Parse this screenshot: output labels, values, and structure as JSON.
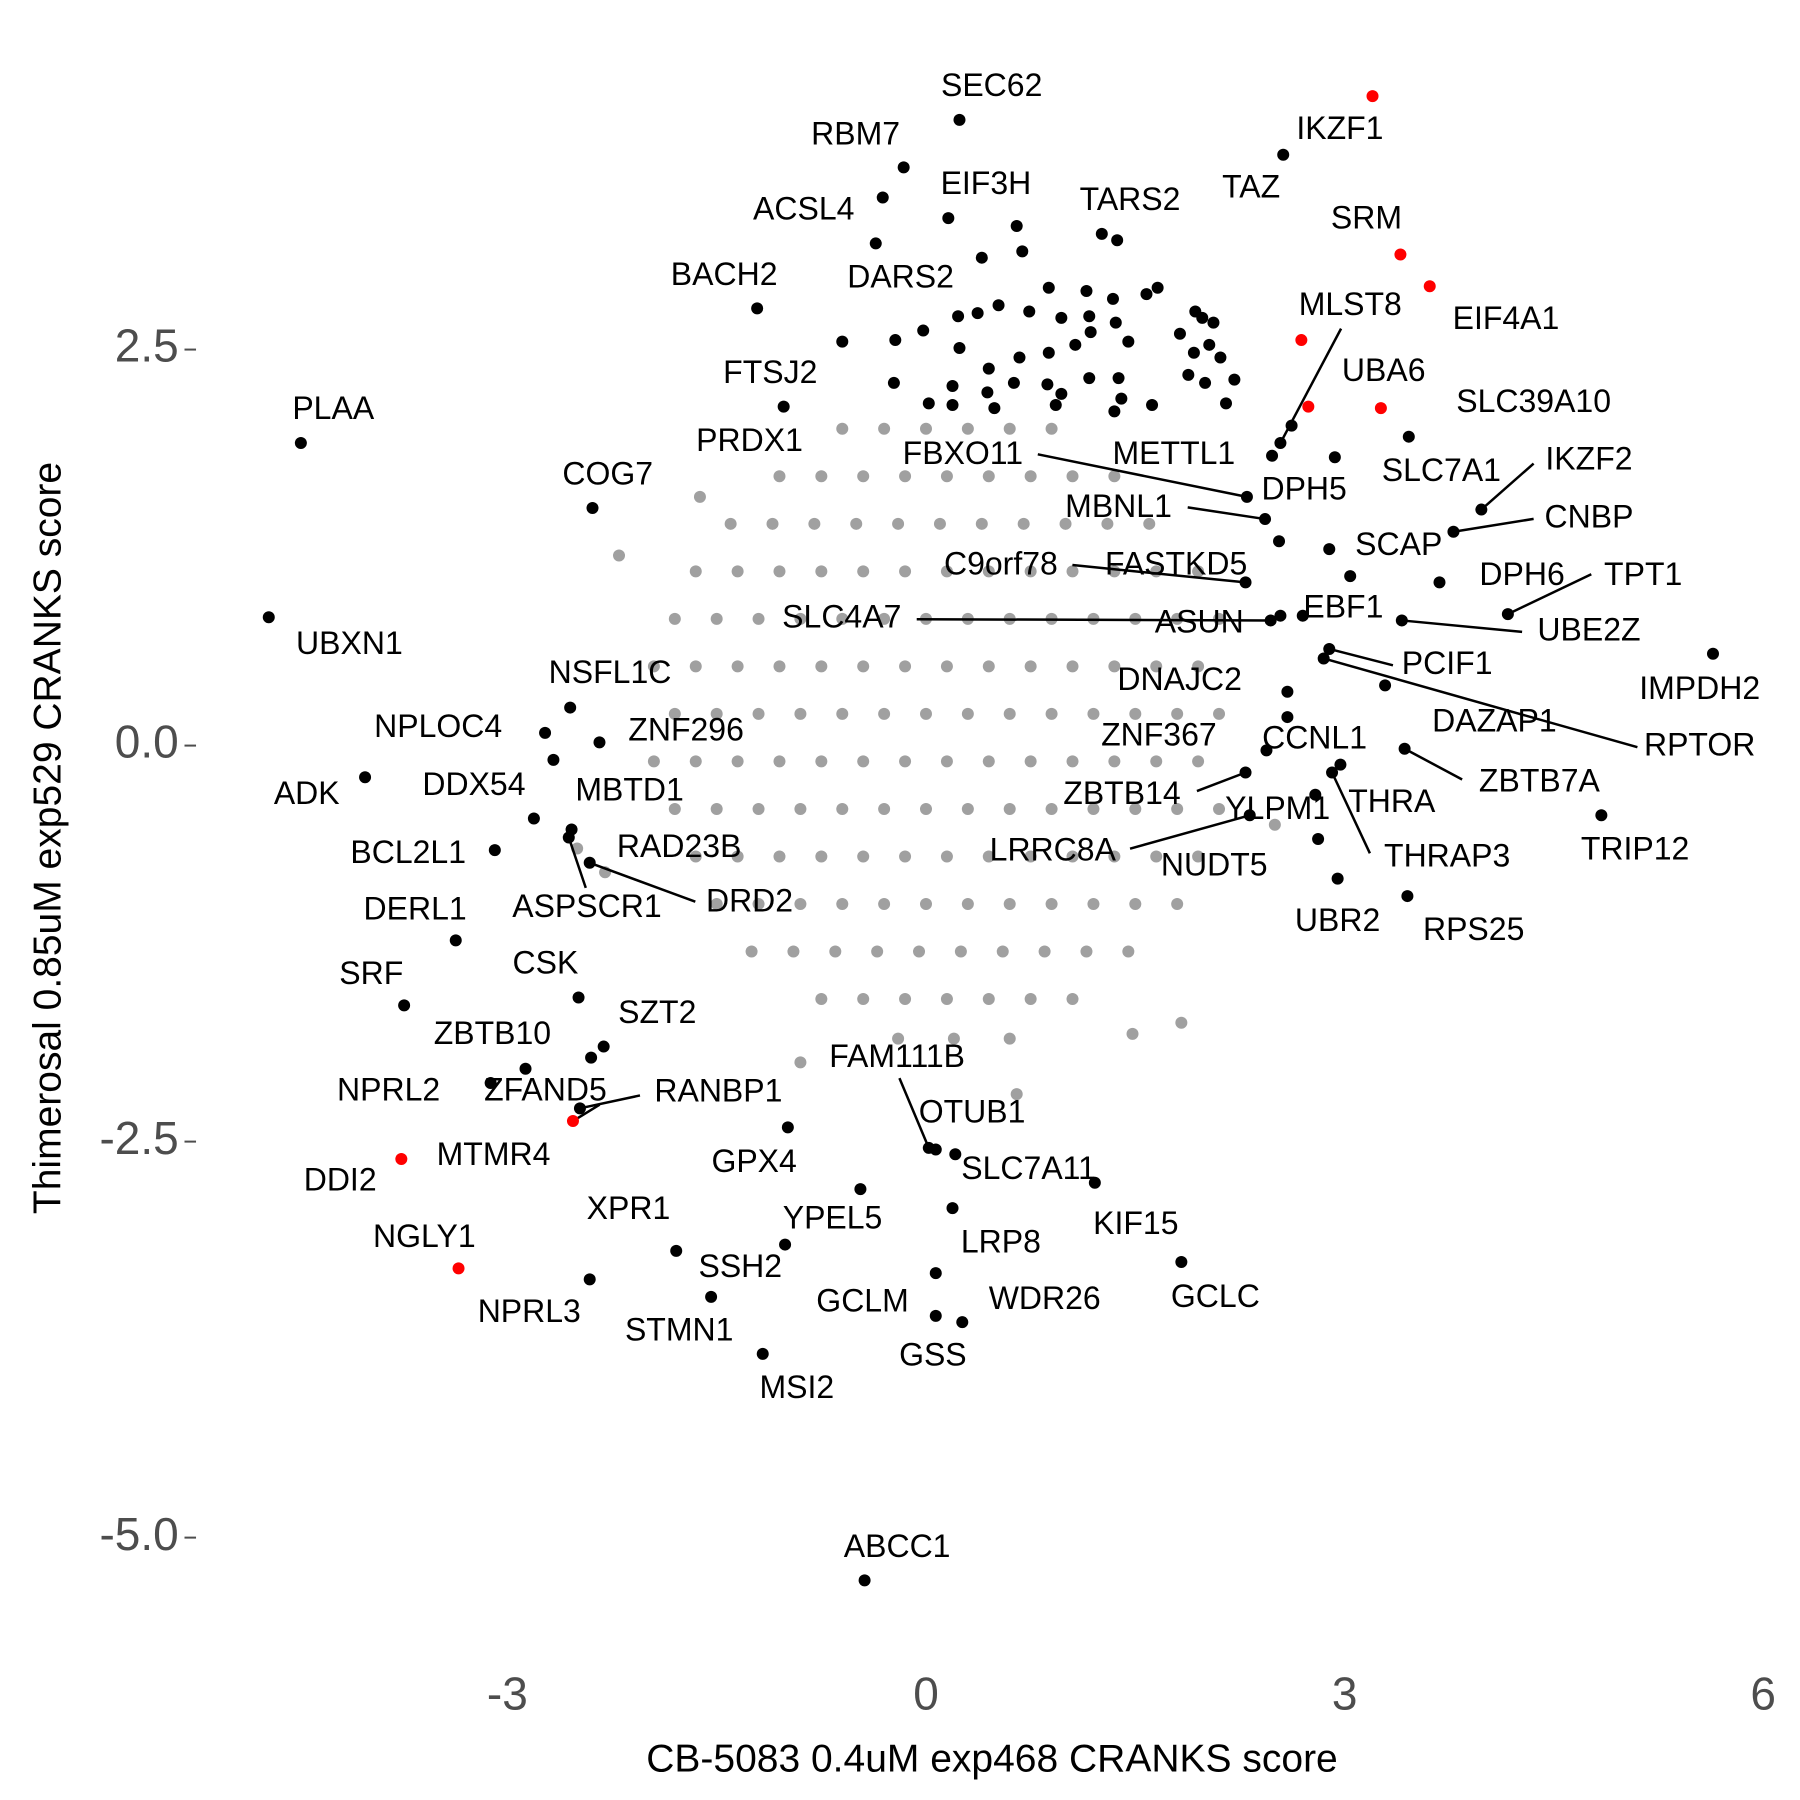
{
  "chart_data": {
    "type": "scatter",
    "xlabel": "CB-5083 0.4uM exp468 CRANKS score",
    "ylabel": "Thimerosal 0.85uM exp529 CRANKS score",
    "xlim": [
      -5.19,
      6.09
    ],
    "ylim": [
      -5.63,
      4.27
    ],
    "xticks": [
      -3,
      0,
      3,
      6
    ],
    "yticks": [
      {
        "value": -5,
        "label": "-5.0"
      },
      {
        "value": -2.5,
        "label": "-2.5"
      },
      {
        "value": 0,
        "label": "0.0"
      },
      {
        "value": 2.5,
        "label": "2.5"
      }
    ],
    "grid": false,
    "series": [
      {
        "color": "#a0a0a0",
        "x": [
          -0.6,
          -0.3,
          0,
          0.3,
          0.6,
          0.9,
          -1.05,
          -0.75,
          -0.45,
          -0.15,
          0.15,
          0.45,
          0.75,
          1.05,
          1.35,
          -1.4,
          -1.1,
          -0.8,
          -0.5,
          -0.2,
          0.1,
          0.4,
          0.7,
          1.0,
          1.3,
          1.6,
          -1.65,
          -1.35,
          -1.05,
          -0.75,
          -0.45,
          -0.15,
          0.15,
          0.45,
          0.75,
          1.05,
          1.35,
          1.65,
          1.95,
          -1.8,
          -1.5,
          -1.2,
          -0.9,
          -0.6,
          -0.3,
          0,
          0.3,
          0.6,
          0.9,
          1.2,
          1.5,
          1.8,
          2.1,
          -1.95,
          -1.65,
          -1.35,
          -1.05,
          -0.75,
          -0.45,
          -0.15,
          0.15,
          0.45,
          0.75,
          1.05,
          1.35,
          1.65,
          1.95,
          -1.8,
          -1.5,
          -1.2,
          -0.9,
          -0.6,
          -0.3,
          0,
          0.3,
          0.6,
          0.9,
          1.2,
          1.5,
          1.8,
          2.1,
          -1.95,
          -1.65,
          -1.35,
          -1.05,
          -0.75,
          -0.45,
          -0.15,
          0.15,
          0.45,
          0.75,
          1.05,
          1.35,
          1.65,
          1.95,
          -1.8,
          -1.5,
          -1.2,
          -0.9,
          -0.6,
          -0.3,
          0,
          0.3,
          0.6,
          0.9,
          1.2,
          1.5,
          1.8,
          2.1,
          -1.65,
          -1.35,
          -1.05,
          -0.75,
          -0.45,
          -0.15,
          0.15,
          0.45,
          0.75,
          1.05,
          1.35,
          1.65,
          1.95,
          -1.5,
          -1.2,
          -0.9,
          -0.6,
          -0.3,
          0,
          0.3,
          0.6,
          0.9,
          1.2,
          1.5,
          1.8,
          -1.25,
          -0.95,
          -0.65,
          -0.35,
          -0.05,
          0.25,
          0.55,
          0.85,
          1.15,
          1.45,
          -0.75,
          -0.45,
          -0.15,
          0.15,
          0.45,
          0.75,
          1.05,
          -0.2,
          0.2,
          0.6,
          -2.2,
          -1.62,
          1.83,
          1.48,
          2.5,
          -2.3,
          -2.5,
          0.65,
          -0.9
        ],
        "values": [
          2.0,
          2.0,
          2.0,
          2.0,
          2.0,
          2.0,
          1.7,
          1.7,
          1.7,
          1.7,
          1.7,
          1.7,
          1.7,
          1.7,
          1.7,
          1.4,
          1.4,
          1.4,
          1.4,
          1.4,
          1.4,
          1.4,
          1.4,
          1.4,
          1.4,
          1.4,
          1.1,
          1.1,
          1.1,
          1.1,
          1.1,
          1.1,
          1.1,
          1.1,
          1.1,
          1.1,
          1.1,
          1.1,
          1.1,
          0.8,
          0.8,
          0.8,
          0.8,
          0.8,
          0.8,
          0.8,
          0.8,
          0.8,
          0.8,
          0.8,
          0.8,
          0.8,
          0.8,
          0.5,
          0.5,
          0.5,
          0.5,
          0.5,
          0.5,
          0.5,
          0.5,
          0.5,
          0.5,
          0.5,
          0.5,
          0.5,
          0.5,
          0.2,
          0.2,
          0.2,
          0.2,
          0.2,
          0.2,
          0.2,
          0.2,
          0.2,
          0.2,
          0.2,
          0.2,
          0.2,
          0.2,
          -0.1,
          -0.1,
          -0.1,
          -0.1,
          -0.1,
          -0.1,
          -0.1,
          -0.1,
          -0.1,
          -0.1,
          -0.1,
          -0.1,
          -0.1,
          -0.1,
          -0.4,
          -0.4,
          -0.4,
          -0.4,
          -0.4,
          -0.4,
          -0.4,
          -0.4,
          -0.4,
          -0.4,
          -0.4,
          -0.4,
          -0.4,
          -0.4,
          -0.7,
          -0.7,
          -0.7,
          -0.7,
          -0.7,
          -0.7,
          -0.7,
          -0.7,
          -0.7,
          -0.7,
          -0.7,
          -0.7,
          -0.7,
          -1.0,
          -1.0,
          -1.0,
          -1.0,
          -1.0,
          -1.0,
          -1.0,
          -1.0,
          -1.0,
          -1.0,
          -1.0,
          -1.0,
          -1.3,
          -1.3,
          -1.3,
          -1.3,
          -1.3,
          -1.3,
          -1.3,
          -1.3,
          -1.3,
          -1.3,
          -1.6,
          -1.6,
          -1.6,
          -1.6,
          -1.6,
          -1.6,
          -1.6,
          -1.85,
          -1.85,
          -1.85,
          1.2,
          1.57,
          -1.75,
          -1.82,
          -0.5,
          -0.8,
          -0.65,
          -2.2,
          -2.0
        ]
      },
      {
        "color": "#000000",
        "x": [
          0.65,
          0.69,
          0.4,
          1.37,
          0.23,
          0.37,
          0.52,
          0.74,
          0.88,
          0.97,
          1.15,
          1.17,
          1.34,
          1.58,
          1.66,
          1.93,
          1.98,
          2.06,
          -0.22,
          -0.02,
          0.24,
          0.45,
          0.67,
          0.88,
          1.07,
          1.18,
          1.36,
          1.45,
          1.82,
          1.92,
          2.03,
          2.11,
          2.21,
          2.0,
          1.88,
          -0.23,
          0.02,
          0.19,
          0.19,
          0.44,
          0.49,
          0.63,
          0.87,
          0.97,
          1.17,
          1.38,
          1.4,
          0.93,
          1.35,
          1.62,
          2.15,
          2.62
        ],
        "values": [
          3.28,
          3.12,
          3.08,
          3.19,
          2.71,
          2.73,
          2.78,
          2.74,
          2.89,
          2.7,
          2.87,
          2.71,
          2.82,
          2.85,
          2.89,
          2.74,
          2.7,
          2.67,
          2.56,
          2.62,
          2.51,
          2.38,
          2.45,
          2.48,
          2.53,
          2.61,
          2.67,
          2.55,
          2.6,
          2.48,
          2.53,
          2.45,
          2.31,
          2.29,
          2.34,
          2.29,
          2.16,
          2.15,
          2.27,
          2.23,
          2.13,
          2.29,
          2.28,
          2.22,
          2.32,
          2.32,
          2.19,
          2.15,
          2.11,
          2.15,
          2.16,
          2.02
        ]
      },
      {
        "color": "#000000",
        "labels": [
          "SEC62",
          "RBM7",
          "TAZ",
          "ACSL4",
          "EIF3H",
          "TARS2",
          "BACH2",
          "DARS2",
          "MLST8",
          "SLC39A10",
          "FTSJ2",
          "PLAA",
          "PRDX1",
          "COG7",
          "FBXO11",
          "METTL1",
          "DPH5",
          "MBNL1",
          "SLC7A1",
          "IKZF2",
          "CNBP",
          "SCAP",
          "DPH6",
          "TPT1",
          "C9orf78",
          "FASTKD5",
          "SLC4A7",
          "ASUN",
          "EBF1",
          "UBE2Z",
          "IMPDH2",
          "UBXN1",
          "PCIF1",
          "RPTOR",
          "DNAJC2",
          "NSFL1C",
          "DAZAP1",
          "ZNF367",
          "CCNL1",
          "NPLOC4",
          "ZNF296",
          "ADK",
          "DDX54",
          "ZBTB7A",
          "ZBTB14",
          "MBTD1",
          "THRA",
          "YLPM1",
          "LRRC8A",
          "BCL2L1",
          "RAD23B",
          "THRAP3",
          "TRIP12",
          "NUDT5",
          "UBR2",
          "RPS25",
          "DRD2",
          "ASPSCR1",
          "DERL1",
          "CSK",
          "SRF",
          "SZT2",
          "ZBTB10",
          "MTMR4",
          "FAM111B",
          "NPRL2",
          "RANBP1",
          "OTUB1",
          "GPX4",
          "SLC7A11",
          "KIF15",
          "XPR1",
          "YPEL5",
          "SSH2",
          "LRP8",
          "GCLC",
          "NPRL3",
          "STMN1",
          "WDR26",
          "GCLM",
          "GSS",
          "MSI2",
          "ABCC1"
        ],
        "x": [
          0.24,
          -0.16,
          2.56,
          -0.31,
          0.16,
          1.26,
          -1.21,
          -0.36,
          2.54,
          3.46,
          -1.02,
          -4.48,
          -0.6,
          -2.39,
          2.3,
          2.48,
          2.53,
          2.43,
          2.93,
          3.98,
          3.78,
          2.89,
          3.68,
          4.17,
          2.29,
          3.04,
          2.47,
          2.54,
          2.7,
          3.41,
          5.64,
          -4.71,
          2.89,
          2.85,
          2.59,
          -2.55,
          3.29,
          2.59,
          2.44,
          -2.73,
          -2.34,
          -4.02,
          -2.67,
          3.43,
          2.29,
          -2.81,
          2.97,
          2.79,
          2.32,
          -3.09,
          -2.54,
          2.91,
          4.84,
          2.81,
          2.95,
          3.45,
          -2.41,
          -2.56,
          -3.37,
          -2.49,
          -3.74,
          -2.31,
          -2.87,
          -2.4,
          0.02,
          -3.12,
          -2.48,
          0.07,
          -0.99,
          0.21,
          1.21,
          -1.79,
          -0.47,
          -1.01,
          0.19,
          1.83,
          -2.41,
          -1.54,
          0.07,
          0.07,
          0.26,
          -1.17,
          -0.44
        ],
        "values": [
          3.95,
          3.65,
          3.73,
          3.46,
          3.33,
          3.23,
          2.76,
          3.17,
          1.91,
          1.95,
          2.14,
          1.91,
          2.55,
          1.5,
          1.57,
          1.83,
          1.29,
          1.43,
          1.82,
          1.49,
          1.35,
          1.24,
          1.03,
          0.83,
          1.03,
          1.07,
          0.79,
          0.82,
          0.82,
          0.79,
          0.58,
          0.81,
          0.61,
          0.55,
          0.34,
          0.24,
          0.38,
          0.18,
          -0.03,
          0.08,
          0.02,
          -0.2,
          -0.09,
          -0.02,
          -0.17,
          -0.46,
          -0.12,
          -0.31,
          -0.44,
          -0.66,
          -0.53,
          -0.17,
          -0.44,
          -0.59,
          -0.84,
          -0.95,
          -0.74,
          -0.58,
          -1.23,
          -1.59,
          -1.64,
          -1.9,
          -2.04,
          -1.97,
          -2.54,
          -2.13,
          -2.29,
          -2.55,
          -2.41,
          -2.58,
          -2.76,
          -3.19,
          -2.8,
          -3.15,
          -2.92,
          -3.26,
          -3.37,
          -3.48,
          -3.33,
          -3.6,
          -3.64,
          -3.84,
          -5.27
        ]
      },
      {
        "color": "#ff0000",
        "labels": [
          "IKZF1",
          "SRM",
          "EIF4A1",
          "UBA6",
          "ZFAND5",
          "DDI2",
          "NGLY1"
        ],
        "x": [
          3.2,
          3.4,
          3.61,
          3.26,
          -2.53,
          -3.76,
          -3.35
        ],
        "values": [
          4.1,
          3.1,
          2.9,
          2.13,
          -2.37,
          -2.61,
          -3.3
        ]
      },
      {
        "color": "#ff0000",
        "x": [
          2.69,
          2.74
        ],
        "values": [
          2.56,
          2.14
        ]
      }
    ]
  }
}
